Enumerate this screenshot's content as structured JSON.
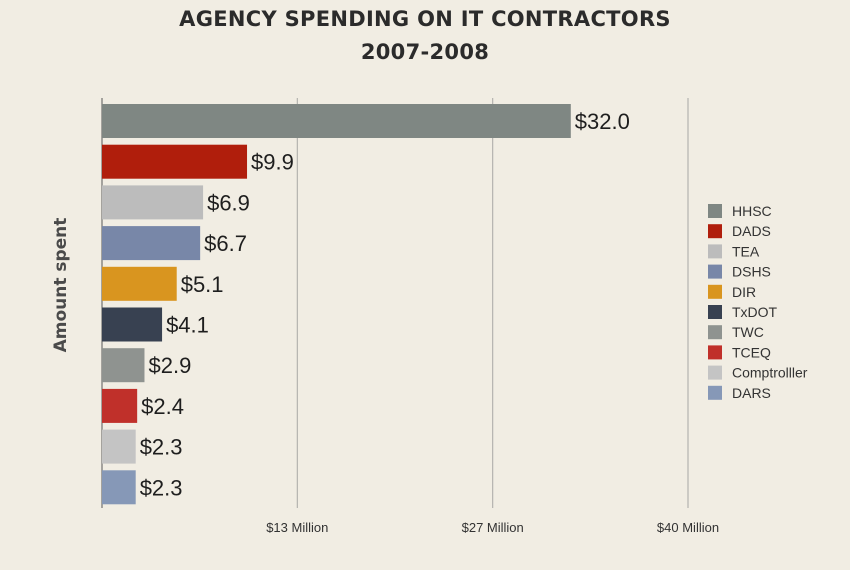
{
  "chart_data": {
    "type": "bar",
    "orientation": "horizontal",
    "title": "AGENCY SPENDING ON IT CONTRACTORS",
    "subtitle": "2007-2008",
    "ylabel": "Amount spent",
    "xlabel": "",
    "categories": [
      "HHSC",
      "DADS",
      "TEA",
      "DSHS",
      "DIR",
      "TxDOT",
      "TWC",
      "TCEQ",
      "Comptrolller",
      "DARS"
    ],
    "values": [
      32.0,
      9.9,
      6.9,
      6.7,
      5.1,
      4.1,
      2.9,
      2.4,
      2.3,
      2.3
    ],
    "value_labels": [
      "$32.0",
      "$9.9",
      "$6.9",
      "$6.7",
      "$5.1",
      "$4.1",
      "$2.9",
      "$2.4",
      "$2.3",
      "$2.3"
    ],
    "colors": [
      "#7f8783",
      "#b01e0c",
      "#bcbcbc",
      "#7887a8",
      "#d9951f",
      "#384151",
      "#8f9390",
      "#c0302a",
      "#c4c4c4",
      "#8698b7"
    ],
    "xlim": [
      0,
      40
    ],
    "x_ticks": [
      13.33,
      26.67,
      40
    ],
    "x_tick_labels": [
      "$13 Million",
      "$27 Million",
      "$40 Million"
    ],
    "grid": true,
    "legend_position": "right",
    "legend": [
      "HHSC",
      "DADS",
      "TEA",
      "DSHS",
      "DIR",
      "TxDOT",
      "TWC",
      "TCEQ",
      "Comptrolller",
      "DARS"
    ]
  }
}
